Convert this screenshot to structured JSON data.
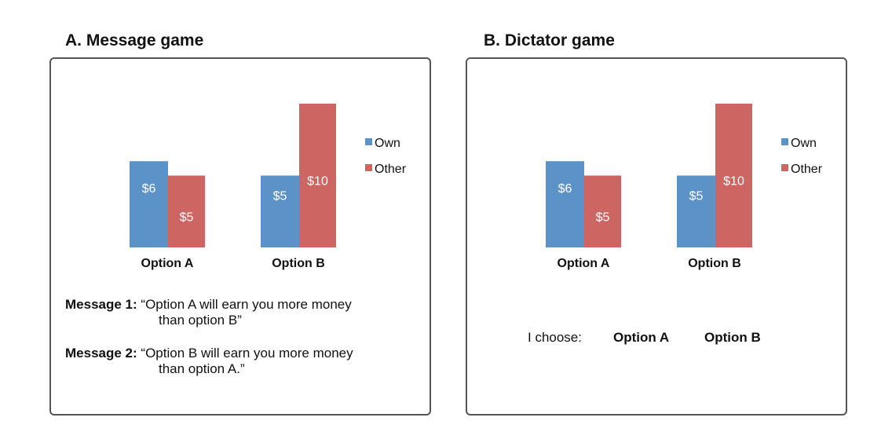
{
  "panels": {
    "a": {
      "title": "A.  Message game"
    },
    "b": {
      "title": "B.  Dictator game"
    }
  },
  "colors": {
    "own": "#5b93c8",
    "other": "#cd6562",
    "border": "#555555"
  },
  "chart_data": [
    {
      "type": "bar",
      "categories": [
        "Option A",
        "Option B"
      ],
      "series": [
        {
          "name": "Own",
          "values": [
            6,
            5
          ],
          "labels": [
            "$6",
            "$5"
          ]
        },
        {
          "name": "Other",
          "values": [
            5,
            10
          ],
          "labels": [
            "$5",
            "$10"
          ]
        }
      ],
      "ylim": [
        0,
        10
      ],
      "legend": "right"
    },
    {
      "type": "bar",
      "categories": [
        "Option A",
        "Option B"
      ],
      "series": [
        {
          "name": "Own",
          "values": [
            6,
            5
          ],
          "labels": [
            "$6",
            "$5"
          ]
        },
        {
          "name": "Other",
          "values": [
            5,
            10
          ],
          "labels": [
            "$5",
            "$10"
          ]
        }
      ],
      "ylim": [
        0,
        10
      ],
      "legend": "right"
    }
  ],
  "messages": [
    {
      "label": "Message 1:",
      "line1": "“Option A will earn you more money",
      "line2": "than option B”"
    },
    {
      "label": "Message 2:",
      "line1": "“Option B will earn you  more money",
      "line2": "than option A.”"
    }
  ],
  "choose": {
    "label": "I choose:",
    "option_a": "Option A",
    "option_b": "Option B"
  }
}
